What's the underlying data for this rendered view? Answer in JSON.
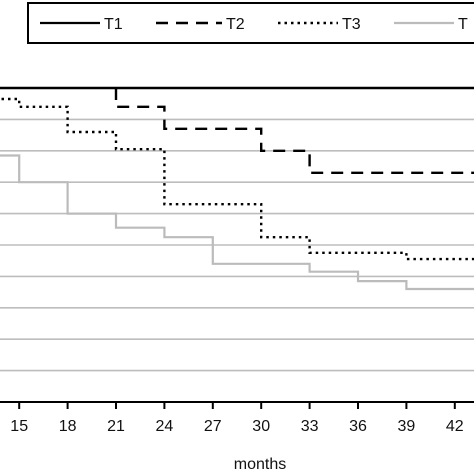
{
  "chart_data": {
    "type": "line",
    "title": "",
    "xlabel": "months",
    "ylabel": "",
    "x_ticks": [
      15,
      18,
      21,
      24,
      27,
      30,
      33,
      36,
      39,
      42
    ],
    "xlim": [
      13.5,
      43.5
    ],
    "ylim": [
      0,
      1
    ],
    "grid": "horizontal",
    "step": true,
    "legend": {
      "placement": "top",
      "entries": [
        "T1",
        "T2",
        "T3",
        "T"
      ]
    },
    "series": [
      {
        "name": "T1",
        "style": "solid",
        "color": "#000000",
        "points": [
          [
            13.5,
            1.0
          ],
          [
            43.5,
            1.0
          ]
        ]
      },
      {
        "name": "T2",
        "style": "dashed",
        "color": "#000000",
        "points": [
          [
            21,
            1.0
          ],
          [
            21,
            0.94
          ],
          [
            24,
            0.94
          ],
          [
            24,
            0.87
          ],
          [
            30,
            0.87
          ],
          [
            30,
            0.8
          ],
          [
            33,
            0.8
          ],
          [
            33,
            0.73
          ],
          [
            43.5,
            0.73
          ]
        ]
      },
      {
        "name": "T3",
        "style": "dotted",
        "color": "#000000",
        "points": [
          [
            13.5,
            0.965
          ],
          [
            15,
            0.965
          ],
          [
            15,
            0.94
          ],
          [
            18,
            0.94
          ],
          [
            18,
            0.86
          ],
          [
            21,
            0.86
          ],
          [
            21,
            0.805
          ],
          [
            24,
            0.805
          ],
          [
            24,
            0.63
          ],
          [
            30,
            0.63
          ],
          [
            30,
            0.525
          ],
          [
            33,
            0.525
          ],
          [
            33,
            0.475
          ],
          [
            39,
            0.475
          ],
          [
            39,
            0.455
          ],
          [
            43.5,
            0.455
          ]
        ]
      },
      {
        "name": "T",
        "style": "solid",
        "color": "#bbbbbb",
        "points": [
          [
            13.5,
            0.785
          ],
          [
            15,
            0.785
          ],
          [
            15,
            0.7
          ],
          [
            18,
            0.7
          ],
          [
            18,
            0.6
          ],
          [
            21,
            0.6
          ],
          [
            21,
            0.555
          ],
          [
            24,
            0.555
          ],
          [
            24,
            0.525
          ],
          [
            27,
            0.525
          ],
          [
            27,
            0.44
          ],
          [
            33,
            0.44
          ],
          [
            33,
            0.415
          ],
          [
            36,
            0.415
          ],
          [
            36,
            0.385
          ],
          [
            39,
            0.385
          ],
          [
            39,
            0.36
          ],
          [
            43.5,
            0.36
          ]
        ]
      }
    ],
    "colors": {
      "frame": "#000000",
      "grid": "#bdbdbd"
    }
  }
}
